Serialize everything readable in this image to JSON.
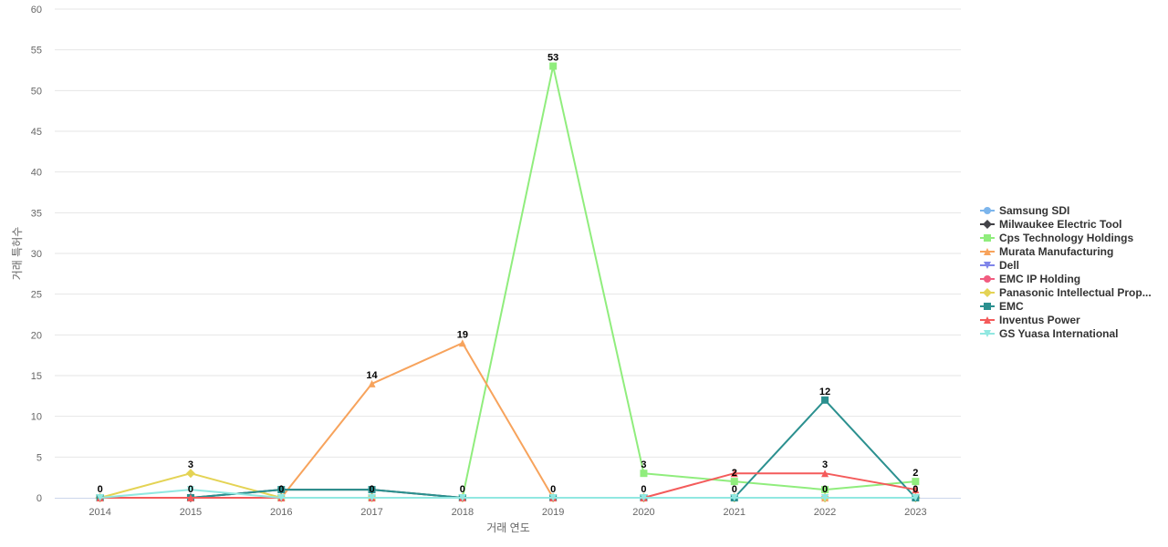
{
  "chart_data": {
    "type": "line",
    "title": "",
    "xlabel": "거래 연도",
    "ylabel": "거래 특허수",
    "ylim": [
      0,
      60
    ],
    "yticks": [
      0,
      5,
      10,
      15,
      20,
      25,
      30,
      35,
      40,
      45,
      50,
      55,
      60
    ],
    "categories": [
      "2014",
      "2015",
      "2016",
      "2017",
      "2018",
      "2019",
      "2020",
      "2021",
      "2022",
      "2023"
    ],
    "grid": true,
    "legend_position": "right",
    "series": [
      {
        "name": "Samsung SDI",
        "color": "#7cb5ec",
        "marker": "circle",
        "values": [
          0,
          0,
          0,
          0,
          0,
          0,
          0,
          0,
          0,
          0
        ]
      },
      {
        "name": "Milwaukee Electric Tool",
        "color": "#434348",
        "marker": "diamond",
        "values": [
          0,
          0,
          1,
          1,
          0,
          0,
          0,
          0,
          0,
          0
        ]
      },
      {
        "name": "Cps Technology Holdings",
        "color": "#90ed7d",
        "marker": "square",
        "values": [
          0,
          0,
          0,
          0,
          0,
          53,
          3,
          2,
          1,
          2
        ]
      },
      {
        "name": "Murata Manufacturing",
        "color": "#f7a35c",
        "marker": "triangle",
        "values": [
          0,
          0,
          0,
          14,
          19,
          0,
          0,
          0,
          0,
          0
        ]
      },
      {
        "name": "Dell",
        "color": "#8085e9",
        "marker": "triangle-down",
        "values": [
          0,
          0,
          0,
          0,
          0,
          0,
          0,
          0,
          0,
          0
        ]
      },
      {
        "name": "EMC IP Holding",
        "color": "#f15c80",
        "marker": "circle",
        "values": [
          0,
          0,
          0,
          0,
          0,
          0,
          0,
          0,
          0,
          0
        ]
      },
      {
        "name": "Panasonic Intellectual Prop...",
        "color": "#e4d354",
        "marker": "diamond",
        "values": [
          0,
          3,
          0,
          0,
          0,
          0,
          0,
          0,
          0,
          0
        ]
      },
      {
        "name": "EMC",
        "color": "#2b908f",
        "marker": "square",
        "values": [
          0,
          0,
          1,
          1,
          0,
          0,
          0,
          0,
          12,
          0
        ]
      },
      {
        "name": "Inventus Power",
        "color": "#f45b5b",
        "marker": "triangle",
        "values": [
          0,
          0,
          0,
          0,
          0,
          0,
          0,
          3,
          3,
          1
        ]
      },
      {
        "name": "GS Yuasa International",
        "color": "#91e8e1",
        "marker": "triangle-down",
        "values": [
          0,
          1,
          0,
          0,
          0,
          0,
          0,
          0,
          0,
          0
        ]
      }
    ],
    "data_labels": [
      {
        "x": "2014",
        "text": "0",
        "value": 0
      },
      {
        "x": "2015",
        "text": "3",
        "value": 3
      },
      {
        "x": "2015",
        "text": "0",
        "value": 0
      },
      {
        "x": "2016",
        "text": "0",
        "value": 0
      },
      {
        "x": "2017",
        "text": "14",
        "value": 14
      },
      {
        "x": "2017",
        "text": "0",
        "value": 0
      },
      {
        "x": "2018",
        "text": "19",
        "value": 19
      },
      {
        "x": "2018",
        "text": "0",
        "value": 0
      },
      {
        "x": "2019",
        "text": "53",
        "value": 53
      },
      {
        "x": "2019",
        "text": "0",
        "value": 0
      },
      {
        "x": "2020",
        "text": "3",
        "value": 3
      },
      {
        "x": "2020",
        "text": "0",
        "value": 0
      },
      {
        "x": "2021",
        "text": "2",
        "value": 2
      },
      {
        "x": "2021",
        "text": "0",
        "value": 0
      },
      {
        "x": "2022",
        "text": "12",
        "value": 12
      },
      {
        "x": "2022",
        "text": "3",
        "value": 3
      },
      {
        "x": "2022",
        "text": "0",
        "value": 0
      },
      {
        "x": "2023",
        "text": "2",
        "value": 2
      },
      {
        "x": "2023",
        "text": "0",
        "value": 0
      }
    ]
  }
}
